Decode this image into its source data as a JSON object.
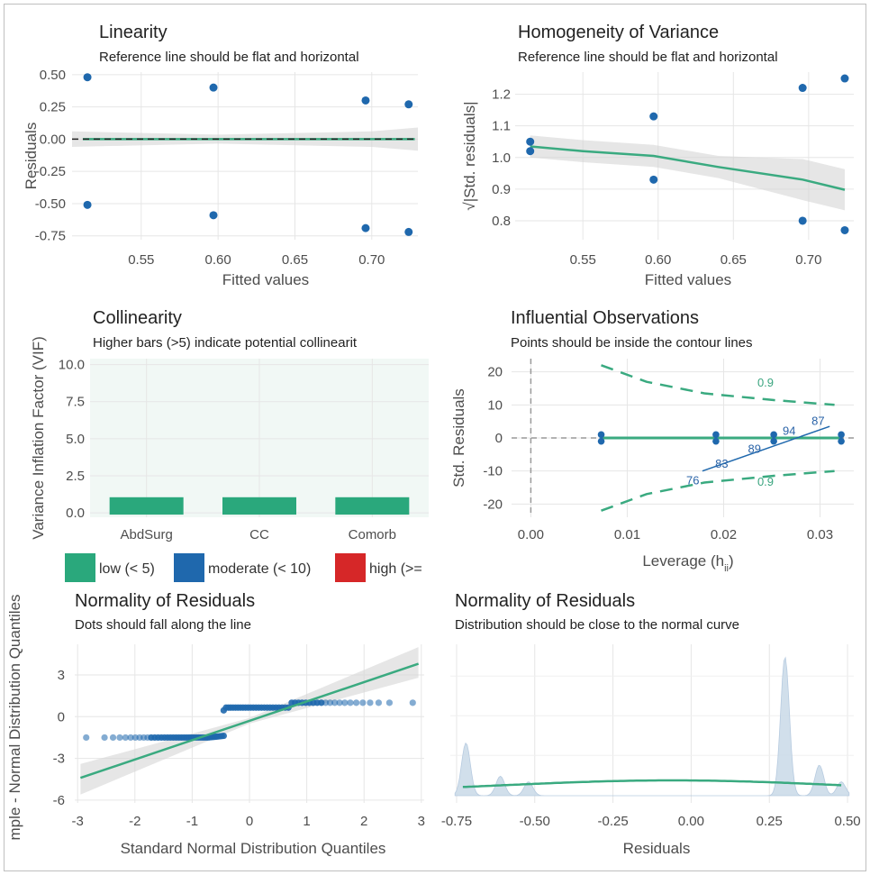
{
  "colors": {
    "point": "#1f68ad",
    "line": "#3aaa80",
    "band": "#d6d6d6",
    "vif_low": "#2aa87c",
    "vif_moderate": "#1f68ad",
    "vif_high": "#d62728",
    "contour": "#3aaa80",
    "dist_fill": "#c9d9e8"
  },
  "chart_data": [
    {
      "id": "linearity",
      "type": "scatter",
      "title": "Linearity",
      "subtitle": "Reference line should be flat and horizontal",
      "xlabel": "Fitted values",
      "ylabel": "Residuals",
      "xlim": [
        0.505,
        0.73
      ],
      "ylim": [
        -0.78,
        0.52
      ],
      "xticks": [
        0.55,
        0.6,
        0.65,
        0.7
      ],
      "xtick_labels": [
        "0.55",
        "0.60",
        "0.65",
        "0.70"
      ],
      "yticks": [
        0.5,
        0.25,
        0.0,
        -0.25,
        -0.5,
        -0.75
      ],
      "ytick_labels": [
        "0.50",
        "0.25",
        "0.00",
        "-0.25",
        "-0.50",
        "-0.75"
      ],
      "points": [
        [
          0.515,
          0.48
        ],
        [
          0.515,
          -0.51
        ],
        [
          0.597,
          0.4
        ],
        [
          0.597,
          -0.59
        ],
        [
          0.696,
          0.3
        ],
        [
          0.696,
          -0.69
        ],
        [
          0.724,
          0.27
        ],
        [
          0.724,
          -0.72
        ]
      ],
      "reference_line": 0,
      "grid": true
    },
    {
      "id": "homogeneity",
      "type": "scatter",
      "title": "Homogeneity of Variance",
      "subtitle": "Reference line should be flat and horizontal",
      "xlabel": "Fitted values",
      "ylabel": "√|Std. residuals|",
      "xlim": [
        0.505,
        0.73
      ],
      "ylim": [
        0.74,
        1.27
      ],
      "xticks": [
        0.55,
        0.6,
        0.65,
        0.7
      ],
      "xtick_labels": [
        "0.55",
        "0.60",
        "0.65",
        "0.70"
      ],
      "yticks": [
        1.2,
        1.1,
        1.0,
        0.9,
        0.8
      ],
      "ytick_labels": [
        "1.2",
        "1.1",
        "1.0",
        "0.9",
        "0.8"
      ],
      "points": [
        [
          0.515,
          1.05
        ],
        [
          0.515,
          1.02
        ],
        [
          0.597,
          1.13
        ],
        [
          0.597,
          0.93
        ],
        [
          0.696,
          1.22
        ],
        [
          0.696,
          0.8
        ],
        [
          0.724,
          1.25
        ],
        [
          0.724,
          0.77
        ]
      ],
      "smooth": [
        [
          0.515,
          1.035
        ],
        [
          0.55,
          1.02
        ],
        [
          0.597,
          1.005
        ],
        [
          0.64,
          0.97
        ],
        [
          0.696,
          0.93
        ],
        [
          0.724,
          0.898
        ]
      ],
      "grid": true
    },
    {
      "id": "collinearity",
      "type": "bar",
      "title": "Collinearity",
      "subtitle": "Higher bars (>5) indicate potential collinearit",
      "xlabel": "",
      "ylabel": "Variance Inflation Factor (VIF)",
      "categories": [
        "AbdSurg",
        "CC",
        "Comorb"
      ],
      "values": [
        1.05,
        1.05,
        1.05
      ],
      "ylim": [
        -0.3,
        10.4
      ],
      "yticks": [
        10.0,
        7.5,
        5.0,
        2.5,
        0.0
      ],
      "ytick_labels": [
        "10.0",
        "7.5",
        "5.0",
        "2.5",
        "0.0"
      ],
      "legend": [
        {
          "label": "low (< 5)",
          "color": "#2aa87c"
        },
        {
          "label": "moderate (< 10)",
          "color": "#1f68ad"
        },
        {
          "label": "high (>=",
          "color": "#d62728"
        }
      ],
      "legend_position": "bottom"
    },
    {
      "id": "influential",
      "type": "scatter",
      "title": "Influential Observations",
      "subtitle": "Points should be inside the contour lines",
      "xlabel": "Leverage (h",
      "xlabel_sub": "ii",
      "xlabel_end": ")",
      "ylabel": "Std. Residuals",
      "xlim": [
        -0.002,
        0.0335
      ],
      "ylim": [
        -24,
        24
      ],
      "xticks": [
        0.0,
        0.01,
        0.02,
        0.03
      ],
      "xtick_labels": [
        "0.00",
        "0.01",
        "0.02",
        "0.03"
      ],
      "yticks": [
        20,
        10,
        0,
        -10,
        -20
      ],
      "ytick_labels": [
        "20",
        "10",
        "0",
        "-10",
        "-20"
      ],
      "points": [
        [
          0.0073,
          1
        ],
        [
          0.0073,
          -1
        ],
        [
          0.0192,
          1
        ],
        [
          0.0192,
          -1
        ],
        [
          0.0252,
          1
        ],
        [
          0.0252,
          -1
        ],
        [
          0.0322,
          1
        ],
        [
          0.0322,
          -1
        ]
      ],
      "contour_upper": [
        [
          0.0073,
          22
        ],
        [
          0.012,
          17
        ],
        [
          0.018,
          13.5
        ],
        [
          0.025,
          11.5
        ],
        [
          0.0315,
          10
        ]
      ],
      "contour_lower": [
        [
          0.0073,
          -22
        ],
        [
          0.012,
          -17
        ],
        [
          0.018,
          -13.5
        ],
        [
          0.025,
          -11.5
        ],
        [
          0.0315,
          -10
        ]
      ],
      "contour_label": "0.9",
      "labels": [
        {
          "text": "87",
          "x": 0.0298,
          "y": 4
        },
        {
          "text": "94",
          "x": 0.0268,
          "y": 1
        },
        {
          "text": "89",
          "x": 0.0232,
          "y": -4.5
        },
        {
          "text": "83",
          "x": 0.0198,
          "y": -9
        },
        {
          "text": "76",
          "x": 0.0168,
          "y": -14
        }
      ],
      "fit_line": [
        [
          0.018,
          -0.5
        ],
        [
          0.0318,
          -0.5
        ]
      ],
      "smooth_line": [
        [
          0.0178,
          -10
        ],
        [
          0.031,
          3.5
        ]
      ],
      "grid": true
    },
    {
      "id": "qq",
      "type": "scatter",
      "title": "Normality of Residuals",
      "subtitle": "Dots should fall along the line",
      "xlabel": "Standard Normal Distribution Quantiles",
      "ylabel": "mple - Normal Distribution Quantiles",
      "xlim": [
        -3.05,
        3.05
      ],
      "ylim": [
        -6.2,
        5.2
      ],
      "xticks": [
        -3,
        -2,
        -1,
        0,
        1,
        2,
        3
      ],
      "xtick_labels": [
        "-3",
        "-2",
        "-1",
        "0",
        "1",
        "2",
        "3"
      ],
      "yticks": [
        3,
        0,
        -3,
        -6
      ],
      "ytick_labels": [
        "3",
        "0",
        "-3",
        "-6"
      ],
      "lower_cluster": {
        "y": -1.5,
        "x_from": -2.85,
        "x_to": -0.45
      },
      "upper_cluster": {
        "y": 0.65,
        "x_from": -0.45,
        "x_to": 2.85
      },
      "line": [
        [
          -2.95,
          -4.4
        ],
        [
          2.95,
          3.8
        ]
      ],
      "grid": true
    },
    {
      "id": "density",
      "type": "area",
      "title": "Normality of Residuals",
      "subtitle": "Distribution should be close to the normal curve",
      "xlabel": "Residuals",
      "ylabel": "",
      "xlim": [
        -0.77,
        0.52
      ],
      "xticks": [
        -0.75,
        -0.5,
        -0.25,
        0.0,
        0.25,
        0.5
      ],
      "xtick_labels": [
        "-0.75",
        "-0.50",
        "-0.25",
        "0.00",
        "0.25",
        "0.50"
      ],
      "peaks": [
        {
          "x": -0.72,
          "h": 0.38
        },
        {
          "x": -0.61,
          "h": 0.14
        },
        {
          "x": -0.52,
          "h": 0.1
        },
        {
          "x": 0.3,
          "h": 1.0
        },
        {
          "x": 0.41,
          "h": 0.22
        },
        {
          "x": 0.48,
          "h": 0.1
        }
      ],
      "normal_curve": {
        "mean": -0.06,
        "sd": 0.55
      },
      "grid": true
    }
  ]
}
